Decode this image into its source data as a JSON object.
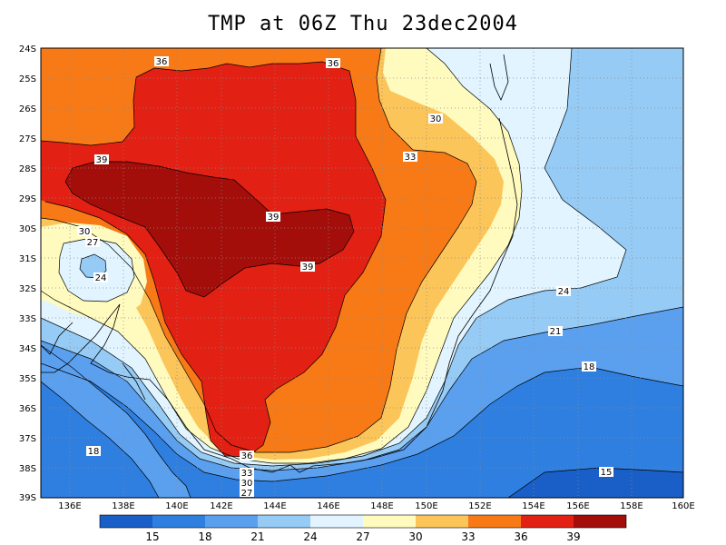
{
  "title": "TMP at 06Z Thu 23dec2004",
  "colors": {
    "c_lt15": "#1a5fc8",
    "c_15_18": "#2e7fe0",
    "c_18_21": "#5aa0ef",
    "c_21_24": "#96cbf5",
    "c_24_27": "#e1f4ff",
    "c_27_30": "#fffbbe",
    "c_30_33": "#fbc55a",
    "c_33_36": "#f77a16",
    "c_36_39": "#e22013",
    "c_gt39": "#a30e0b"
  },
  "map_data": {
    "lat_labels": [
      "24S",
      "25S",
      "26S",
      "27S",
      "28S",
      "29S",
      "30S",
      "31S",
      "32S",
      "33S",
      "34S",
      "35S",
      "36S",
      "37S",
      "38S",
      "39S"
    ],
    "lon_labels": [
      "136E",
      "138E",
      "140E",
      "142E",
      "144E",
      "146E",
      "148E",
      "150E",
      "152E",
      "154E",
      "156E",
      "158E",
      "160E"
    ],
    "contour_labels": [
      "36",
      "36",
      "30",
      "33",
      "39",
      "39",
      "39",
      "30",
      "27",
      "24",
      "24",
      "21",
      "18",
      "18",
      "15",
      "36",
      "33",
      "30",
      "27"
    ],
    "legend_labels": [
      "15",
      "18",
      "21",
      "24",
      "27",
      "30",
      "33",
      "36",
      "39"
    ]
  }
}
